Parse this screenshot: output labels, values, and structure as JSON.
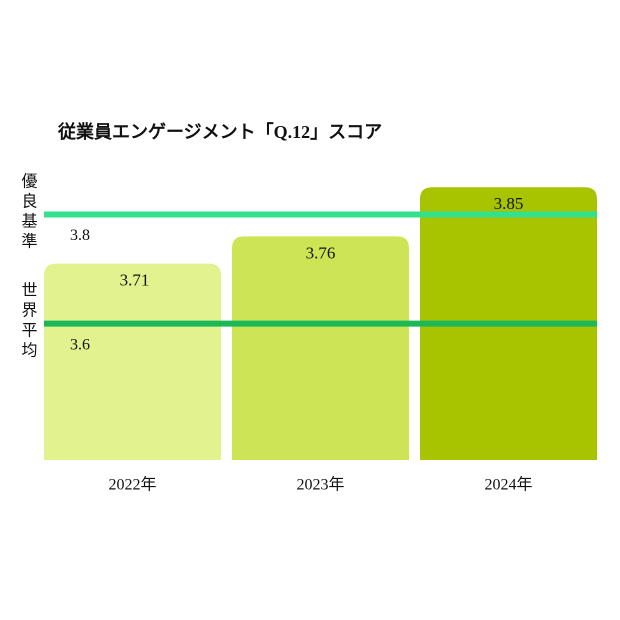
{
  "chart_data": {
    "type": "bar",
    "title": "従業員エンゲージメント「Q.12」スコア",
    "categories": [
      "2022年",
      "2023年",
      "2024年"
    ],
    "values": [
      3.71,
      3.76,
      3.85
    ],
    "colors": [
      "#e2f28e",
      "#cde455",
      "#a8c300"
    ],
    "ylim": [
      3.35,
      3.9
    ],
    "reference_lines": [
      {
        "name": "優良基準",
        "value": 3.8,
        "color": "#33e08c"
      },
      {
        "name": "世界平均",
        "value": 3.6,
        "color": "#1cb858"
      }
    ]
  }
}
